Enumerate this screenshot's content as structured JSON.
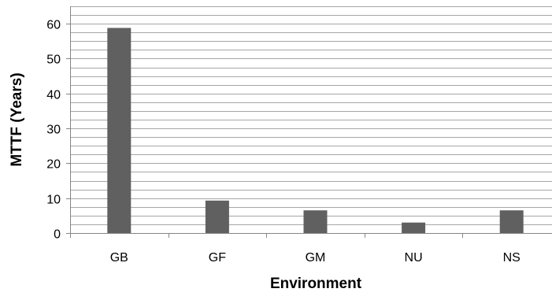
{
  "chart_data": {
    "type": "bar",
    "title": "",
    "xlabel": "Environment",
    "ylabel": "MTTF (Years)",
    "categories": [
      "GB",
      "GF",
      "GM",
      "NU",
      "NS"
    ],
    "values": [
      58.8,
      9.3,
      6.5,
      3.0,
      6.5
    ],
    "ylim": [
      0,
      65
    ],
    "yticks": [
      0,
      10,
      20,
      30,
      40,
      50,
      60
    ],
    "minor_grid_step": 2.5,
    "grid": true,
    "legend": "none",
    "colors": {
      "bar": "#606060",
      "grid": "#a6a6a6",
      "axis": "#868686",
      "background": "#ffffff"
    }
  }
}
